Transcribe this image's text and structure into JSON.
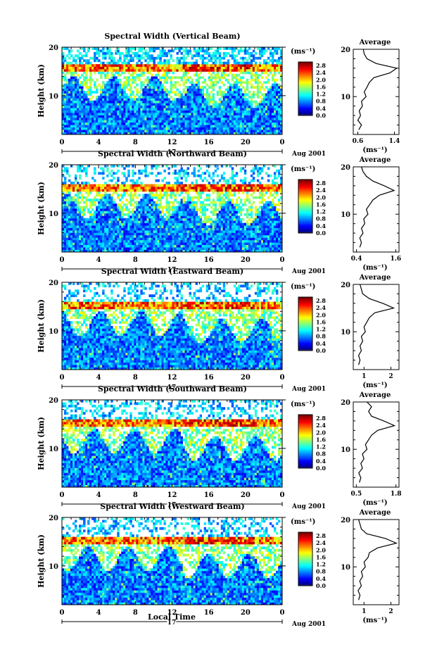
{
  "figure": {
    "date_label": "Aug 2001",
    "day_label": "17",
    "xlabel": "Local Time",
    "ylabel": "Height (km)",
    "unit_label": "(ms⁻¹)",
    "average_title": "Average",
    "average_xlabel": "(ms⁻¹)"
  },
  "chart_data": [
    {
      "type": "heatmap",
      "title": "Spectral Width (Vertical Beam)",
      "x_ticks": [
        "0",
        "4",
        "8",
        "12",
        "16",
        "20",
        "0"
      ],
      "xlim": [
        0,
        24
      ],
      "y_ticks": [
        "20",
        "10"
      ],
      "ylim": [
        2,
        20
      ],
      "colorbar": {
        "ticks": [
          "2.8",
          "2.4",
          "2.0",
          "1.6",
          "1.2",
          "0.8",
          "0.4",
          "0.0"
        ],
        "range": [
          0,
          3.0
        ]
      },
      "regions": [
        {
          "kind": "gaps_above",
          "start_height_km": 18.5
        },
        {
          "kind": "high_width_layer",
          "height_km": [
            15,
            16.5
          ],
          "value": 2.2
        }
      ],
      "average_profile": {
        "x_ticks": [
          "0.6",
          "1.4"
        ],
        "xlim": [
          0.5,
          1.5
        ],
        "y_ticks": [
          "20",
          "10"
        ],
        "ylim": [
          2,
          20
        ],
        "points": [
          [
            0.62,
            3
          ],
          [
            0.68,
            4
          ],
          [
            0.6,
            5
          ],
          [
            0.66,
            6
          ],
          [
            0.63,
            7
          ],
          [
            0.7,
            8
          ],
          [
            0.68,
            9
          ],
          [
            0.78,
            10
          ],
          [
            0.74,
            11
          ],
          [
            0.8,
            12
          ],
          [
            0.85,
            13
          ],
          [
            0.95,
            14
          ],
          [
            1.3,
            15
          ],
          [
            1.45,
            16
          ],
          [
            1.0,
            17
          ],
          [
            0.8,
            18
          ],
          [
            0.74,
            19
          ],
          [
            0.72,
            20
          ]
        ]
      }
    },
    {
      "type": "heatmap",
      "title": "Spectral Width (Northward Beam)",
      "x_ticks": [
        "0",
        "4",
        "8",
        "12",
        "16",
        "20",
        "0"
      ],
      "xlim": [
        0,
        24
      ],
      "y_ticks": [
        "20",
        "10"
      ],
      "ylim": [
        2,
        20
      ],
      "colorbar": {
        "ticks": [
          "2.8",
          "2.4",
          "2.0",
          "1.6",
          "1.2",
          "0.8",
          "0.4",
          "0.0"
        ],
        "range": [
          0,
          3.0
        ]
      },
      "average_profile": {
        "x_ticks": [
          "0.4",
          "1.6"
        ],
        "xlim": [
          0.3,
          1.7
        ],
        "y_ticks": [
          "20",
          "10"
        ],
        "ylim": [
          2,
          20
        ],
        "points": [
          [
            0.5,
            3
          ],
          [
            0.55,
            4
          ],
          [
            0.5,
            5
          ],
          [
            0.6,
            6
          ],
          [
            0.55,
            7
          ],
          [
            0.65,
            8
          ],
          [
            0.62,
            9
          ],
          [
            0.75,
            10
          ],
          [
            0.7,
            11
          ],
          [
            0.8,
            12
          ],
          [
            0.9,
            13
          ],
          [
            1.1,
            14
          ],
          [
            1.55,
            15
          ],
          [
            1.25,
            16
          ],
          [
            0.9,
            17
          ],
          [
            0.7,
            18
          ],
          [
            0.6,
            19
          ],
          [
            0.55,
            20
          ]
        ]
      }
    },
    {
      "type": "heatmap",
      "title": "Spectral Width (Eastward Beam)",
      "x_ticks": [
        "0",
        "4",
        "8",
        "12",
        "16",
        "20",
        "0"
      ],
      "xlim": [
        0,
        24
      ],
      "y_ticks": [
        "20",
        "10"
      ],
      "ylim": [
        2,
        20
      ],
      "colorbar": {
        "ticks": [
          "2.8",
          "2.4",
          "2.0",
          "1.6",
          "1.2",
          "0.8",
          "0.4",
          "0.0"
        ],
        "range": [
          0,
          3.0
        ]
      },
      "average_profile": {
        "x_ticks": [
          "1",
          "2"
        ],
        "xlim": [
          0.6,
          2.3
        ],
        "y_ticks": [
          "20",
          "10"
        ],
        "ylim": [
          2,
          20
        ],
        "points": [
          [
            0.8,
            3
          ],
          [
            0.85,
            4
          ],
          [
            0.8,
            5
          ],
          [
            0.9,
            6
          ],
          [
            0.85,
            7
          ],
          [
            0.95,
            8
          ],
          [
            0.9,
            9
          ],
          [
            1.05,
            10
          ],
          [
            1.0,
            11
          ],
          [
            1.1,
            12
          ],
          [
            1.2,
            13
          ],
          [
            1.4,
            14
          ],
          [
            2.1,
            15
          ],
          [
            1.7,
            16
          ],
          [
            1.2,
            17
          ],
          [
            0.95,
            18
          ],
          [
            0.9,
            19
          ],
          [
            0.85,
            20
          ]
        ]
      }
    },
    {
      "type": "heatmap",
      "title": "Spectral Width (Southward Beam)",
      "x_ticks": [
        "0",
        "4",
        "8",
        "12",
        "16",
        "20",
        "0"
      ],
      "xlim": [
        0,
        24
      ],
      "y_ticks": [
        "20",
        "10"
      ],
      "ylim": [
        2,
        20
      ],
      "colorbar": {
        "ticks": [
          "2.8",
          "2.4",
          "2.0",
          "1.6",
          "1.2",
          "0.8",
          "0.4",
          "0.0"
        ],
        "range": [
          0,
          3.0
        ]
      },
      "average_profile": {
        "x_ticks": [
          "0.5",
          "1.8"
        ],
        "xlim": [
          0.4,
          1.9
        ],
        "y_ticks": [
          "20",
          "10"
        ],
        "ylim": [
          2,
          20
        ],
        "points": [
          [
            0.6,
            3
          ],
          [
            0.65,
            4
          ],
          [
            0.58,
            5
          ],
          [
            0.7,
            6
          ],
          [
            0.65,
            7
          ],
          [
            0.75,
            8
          ],
          [
            0.7,
            9
          ],
          [
            0.85,
            10
          ],
          [
            0.8,
            11
          ],
          [
            0.9,
            12
          ],
          [
            1.0,
            13
          ],
          [
            1.2,
            14
          ],
          [
            1.75,
            15
          ],
          [
            1.4,
            16
          ],
          [
            1.0,
            17
          ],
          [
            0.9,
            18
          ],
          [
            1.0,
            19
          ],
          [
            0.85,
            20
          ]
        ]
      }
    },
    {
      "type": "heatmap",
      "title": "Spectral Width (Westward Beam)",
      "x_ticks": [
        "0",
        "4",
        "8",
        "12",
        "16",
        "20",
        "0"
      ],
      "xlim": [
        0,
        24
      ],
      "y_ticks": [
        "20",
        "10"
      ],
      "ylim": [
        2,
        20
      ],
      "colorbar": {
        "ticks": [
          "2.8",
          "2.4",
          "2.0",
          "1.6",
          "1.2",
          "0.8",
          "0.4",
          "0.0"
        ],
        "range": [
          0,
          3.0
        ]
      },
      "average_profile": {
        "x_ticks": [
          "1",
          "2"
        ],
        "xlim": [
          0.6,
          2.3
        ],
        "y_ticks": [
          "20",
          "10"
        ],
        "ylim": [
          2,
          20
        ],
        "points": [
          [
            0.8,
            3
          ],
          [
            0.85,
            4
          ],
          [
            0.78,
            5
          ],
          [
            0.9,
            6
          ],
          [
            0.84,
            7
          ],
          [
            0.95,
            8
          ],
          [
            0.9,
            9
          ],
          [
            1.05,
            10
          ],
          [
            1.0,
            11
          ],
          [
            1.15,
            12
          ],
          [
            1.2,
            13
          ],
          [
            1.5,
            14
          ],
          [
            2.2,
            15
          ],
          [
            1.8,
            16
          ],
          [
            1.1,
            17
          ],
          [
            0.9,
            18
          ],
          [
            0.85,
            19
          ],
          [
            0.8,
            20
          ]
        ]
      }
    }
  ]
}
